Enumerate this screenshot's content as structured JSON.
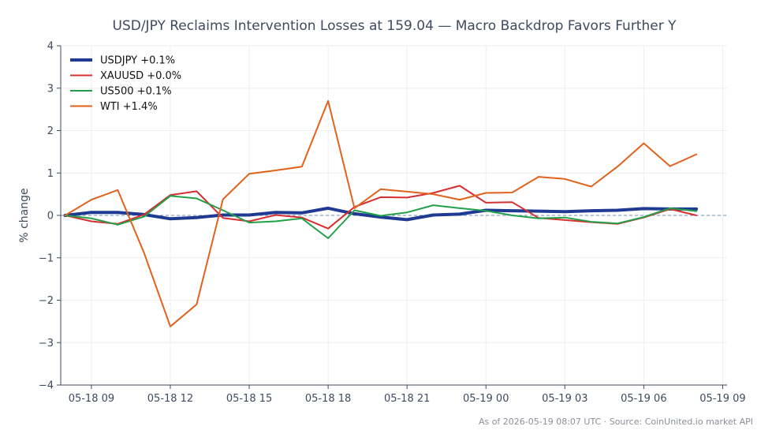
{
  "chart_data": {
    "type": "line",
    "title": "USD/JPY Reclaims Intervention Losses at 159.04 — Macro Backdrop Favors Further Y",
    "xlabel": "",
    "ylabel": "% change",
    "ylim": [
      -4,
      4
    ],
    "yticks": [
      -4,
      -3,
      -2,
      -1,
      0,
      1,
      2,
      3,
      4
    ],
    "ytick_labels": [
      "−4",
      "−3",
      "−2",
      "−1",
      "0",
      "1",
      "2",
      "3",
      "4"
    ],
    "xlim": [
      "2026-05-18 07:50",
      "2026-05-19 09:10"
    ],
    "xticks": [
      "2026-05-18 09:00",
      "2026-05-18 12:00",
      "2026-05-18 15:00",
      "2026-05-18 18:00",
      "2026-05-18 21:00",
      "2026-05-19 00:00",
      "2026-05-19 03:00",
      "2026-05-19 06:00",
      "2026-05-19 09:00"
    ],
    "xtick_labels": [
      "05-18 09",
      "05-18 12",
      "05-18 15",
      "05-18 18",
      "05-18 21",
      "05-19 00",
      "05-19 03",
      "05-19 06",
      "05-19 09"
    ],
    "x": [
      "2026-05-18 08:00",
      "2026-05-18 09:00",
      "2026-05-18 10:00",
      "2026-05-18 11:00",
      "2026-05-18 12:00",
      "2026-05-18 13:00",
      "2026-05-18 14:00",
      "2026-05-18 15:00",
      "2026-05-18 16:00",
      "2026-05-18 17:00",
      "2026-05-18 18:00",
      "2026-05-18 19:00",
      "2026-05-18 20:00",
      "2026-05-18 21:00",
      "2026-05-18 22:00",
      "2026-05-18 23:00",
      "2026-05-19 00:00",
      "2026-05-19 01:00",
      "2026-05-19 02:00",
      "2026-05-19 03:00",
      "2026-05-19 04:00",
      "2026-05-19 05:00",
      "2026-05-19 06:00",
      "2026-05-19 07:00",
      "2026-05-19 08:00"
    ],
    "series": [
      {
        "name": "USDJPY +0.1%",
        "color": "#1f3a93",
        "width": 4,
        "values": [
          0.0,
          0.07,
          0.07,
          0.02,
          -0.08,
          -0.05,
          0.01,
          0.01,
          0.07,
          0.06,
          0.17,
          0.04,
          -0.04,
          -0.1,
          0.01,
          0.03,
          0.12,
          0.11,
          0.1,
          0.09,
          0.11,
          0.12,
          0.16,
          0.15,
          0.15
        ]
      },
      {
        "name": "XAUUSD +0.0%",
        "color": "#d62f2f",
        "width": 2,
        "values": [
          0.0,
          -0.14,
          -0.2,
          0.02,
          0.48,
          0.57,
          -0.06,
          -0.14,
          0.01,
          -0.05,
          -0.31,
          0.2,
          0.43,
          0.42,
          0.53,
          0.7,
          0.3,
          0.31,
          -0.06,
          -0.11,
          -0.16,
          -0.2,
          -0.05,
          0.15,
          0.0
        ]
      },
      {
        "name": "US500 +0.1%",
        "color": "#22a049",
        "width": 2,
        "values": [
          0.0,
          -0.07,
          -0.22,
          -0.03,
          0.46,
          0.4,
          0.12,
          -0.17,
          -0.14,
          -0.07,
          -0.54,
          0.12,
          -0.01,
          0.07,
          0.24,
          0.17,
          0.11,
          0.0,
          -0.07,
          -0.05,
          -0.15,
          -0.19,
          -0.04,
          0.17,
          0.1
        ]
      },
      {
        "name": "WTI +1.4%",
        "color": "#e0621c",
        "width": 2,
        "values": [
          0.0,
          0.37,
          0.6,
          -0.88,
          -2.62,
          -2.1,
          0.38,
          0.98,
          1.06,
          1.15,
          2.7,
          0.17,
          0.62,
          0.56,
          0.5,
          0.37,
          0.53,
          0.54,
          0.91,
          0.86,
          0.68,
          1.15,
          1.7,
          1.16,
          1.44
        ]
      }
    ],
    "legend": "top-left",
    "grid": true,
    "zero_line": {
      "value": 0,
      "color": "#6f8fb3",
      "style": "dashed"
    },
    "source": "As of 2026-05-19 08:07 UTC · Source: CoinUnited.io market API"
  }
}
